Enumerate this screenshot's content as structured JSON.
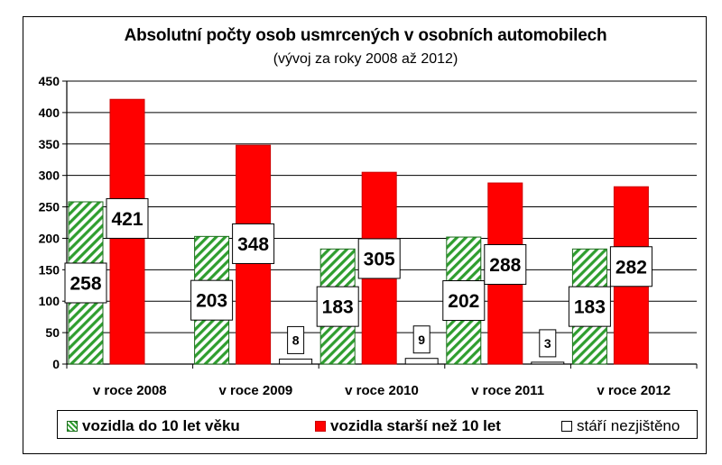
{
  "chart_data": {
    "type": "bar",
    "title": "Absolutní počty osob usmrcených v osobních automobilech",
    "subtitle": "(vývoj za roky 2008 až 2012)",
    "categories": [
      "v roce 2008",
      "v roce 2009",
      "v roce 2010",
      "v roce 2011",
      "v roce 2012"
    ],
    "series": [
      {
        "name": "vozidla do 10 let věku",
        "values": [
          258,
          203,
          183,
          202,
          183
        ],
        "color": "#33aa33",
        "pattern": "hatched"
      },
      {
        "name": "vozidla starší než 10 let",
        "values": [
          421,
          348,
          305,
          288,
          282
        ],
        "color": "#ff0000"
      },
      {
        "name": "stáří nezjištěno",
        "values": [
          0,
          8,
          9,
          3,
          0
        ],
        "color": "#ffffff"
      }
    ],
    "data_labels": [
      [
        "258",
        "203",
        "183",
        "202",
        "183"
      ],
      [
        "421",
        "348",
        "305",
        "288",
        "282"
      ],
      [
        "",
        "8",
        "9",
        "3",
        ""
      ]
    ],
    "yticks": [
      "0",
      "50",
      "100",
      "150",
      "200",
      "250",
      "300",
      "350",
      "400",
      "450"
    ],
    "ylim": [
      0,
      450
    ],
    "grid": true,
    "legend": "bottom"
  }
}
